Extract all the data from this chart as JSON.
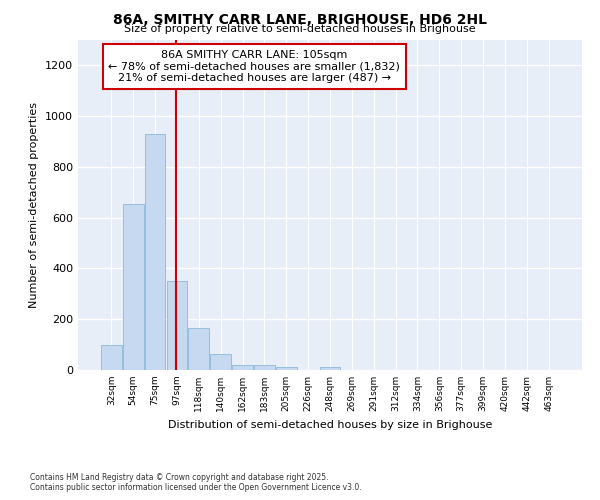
{
  "title": "86A, SMITHY CARR LANE, BRIGHOUSE, HD6 2HL",
  "subtitle": "Size of property relative to semi-detached houses in Brighouse",
  "xlabel": "Distribution of semi-detached houses by size in Brighouse",
  "ylabel": "Number of semi-detached properties",
  "categories": [
    "32sqm",
    "54sqm",
    "75sqm",
    "97sqm",
    "118sqm",
    "140sqm",
    "162sqm",
    "183sqm",
    "205sqm",
    "226sqm",
    "248sqm",
    "269sqm",
    "291sqm",
    "312sqm",
    "334sqm",
    "356sqm",
    "377sqm",
    "399sqm",
    "420sqm",
    "442sqm",
    "463sqm"
  ],
  "values": [
    100,
    655,
    930,
    350,
    165,
    65,
    20,
    20,
    10,
    0,
    10,
    0,
    0,
    0,
    0,
    0,
    0,
    0,
    0,
    0,
    0
  ],
  "bar_color": "#c6d9f0",
  "bar_edge_color": "#7bafd4",
  "vline_color": "#cc0000",
  "vline_x_index": 3,
  "annotation_title": "86A SMITHY CARR LANE: 105sqm",
  "annotation_line1": "← 78% of semi-detached houses are smaller (1,832)",
  "annotation_line2": "21% of semi-detached houses are larger (487) →",
  "annotation_box_color": "#cc0000",
  "ylim": [
    0,
    1300
  ],
  "yticks": [
    0,
    200,
    400,
    600,
    800,
    1000,
    1200
  ],
  "footer_line1": "Contains HM Land Registry data © Crown copyright and database right 2025.",
  "footer_line2": "Contains public sector information licensed under the Open Government Licence v3.0.",
  "bg_color": "#ffffff",
  "plot_bg_color": "#e8eef8"
}
